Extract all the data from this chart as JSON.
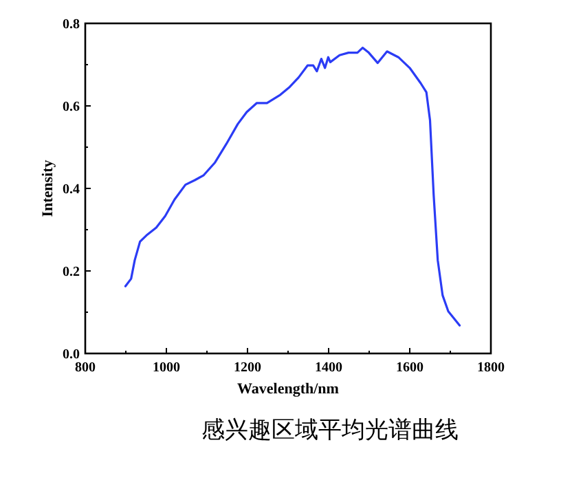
{
  "chart_data": {
    "type": "line",
    "xlabel": "Wavelength/nm",
    "ylabel": "Intensity",
    "annotations": [
      "感兴趣区域平均光谱曲线"
    ],
    "xlim": [
      800,
      1800
    ],
    "xticks": [
      800,
      1000,
      1200,
      1400,
      1600,
      1800
    ],
    "ylim": [
      0,
      0.8
    ],
    "yticks": [
      {
        "value": 0,
        "label": "0.0"
      },
      0.2,
      0.4,
      0.6,
      0.8
    ],
    "series": [
      {
        "color": "#2b3cf5",
        "x": [
          899,
          913,
          922,
          935,
          953,
          975,
          997,
          1020,
          1047,
          1070,
          1092,
          1120,
          1148,
          1176,
          1198,
          1223,
          1248,
          1281,
          1304,
          1326,
          1348,
          1362,
          1371,
          1382,
          1391,
          1399,
          1404,
          1427,
          1449,
          1471,
          1484,
          1499,
          1521,
          1544,
          1572,
          1600,
          1627,
          1641,
          1650,
          1659,
          1669,
          1681,
          1695,
          1723
        ],
        "values": [
          0.163,
          0.181,
          0.226,
          0.271,
          0.288,
          0.305,
          0.333,
          0.373,
          0.409,
          0.42,
          0.432,
          0.463,
          0.508,
          0.556,
          0.585,
          0.607,
          0.607,
          0.627,
          0.646,
          0.669,
          0.698,
          0.698,
          0.684,
          0.714,
          0.692,
          0.718,
          0.706,
          0.723,
          0.729,
          0.729,
          0.741,
          0.729,
          0.704,
          0.732,
          0.718,
          0.692,
          0.655,
          0.633,
          0.565,
          0.384,
          0.226,
          0.141,
          0.102,
          0.068
        ]
      }
    ]
  }
}
